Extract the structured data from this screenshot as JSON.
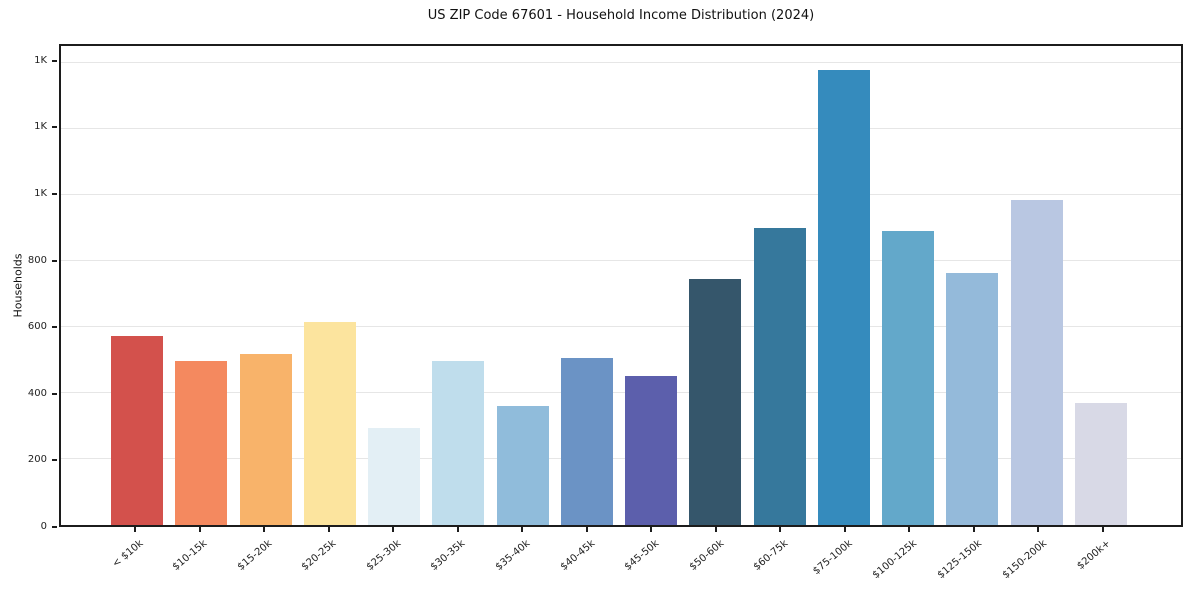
{
  "figure": {
    "title": "US ZIP Code 67601 - Household Income Distribution (2024)",
    "background_color": "#ffffff",
    "spine_color": "#1c1c1c",
    "gridline_color": "#e6e6e6"
  },
  "chart_data": {
    "type": "bar",
    "title": "US ZIP Code 67601 - Household Income Distribution (2024)",
    "xlabel": "",
    "ylabel": "Households",
    "categories": [
      "< $10k",
      "$10-15k",
      "$15-20k",
      "$20-25k",
      "$25-30k",
      "$30-35k",
      "$35-40k",
      "$40-45k",
      "$45-50k",
      "$50-60k",
      "$60-75k",
      "$75-100k",
      "$100-125k",
      "$125-150k",
      "$150-200k",
      "$200k+"
    ],
    "values": [
      571,
      495,
      517,
      614,
      295,
      497,
      360,
      505,
      450,
      745,
      900,
      1376,
      891,
      762,
      984,
      368
    ],
    "bar_colors": [
      "#d3514c",
      "#f4895f",
      "#f8b36a",
      "#fce49e",
      "#e3eff5",
      "#bfddec",
      "#90bcdb",
      "#6b93c5",
      "#5c5fac",
      "#35566b",
      "#36789c",
      "#358bbd",
      "#63a8ca",
      "#94bada",
      "#b9c7e2",
      "#d8d9e6"
    ],
    "ylim": [
      0,
      1450
    ],
    "yticks": [
      {
        "value": 0,
        "label": "0"
      },
      {
        "value": 200,
        "label": "200"
      },
      {
        "value": 400,
        "label": "400"
      },
      {
        "value": 600,
        "label": "600"
      },
      {
        "value": 800,
        "label": "800"
      },
      {
        "value": 1000,
        "label": "1K"
      },
      {
        "value": 1200,
        "label": "1K"
      },
      {
        "value": 1400,
        "label": "1K"
      }
    ],
    "grid": "horizontal",
    "legend": "none"
  }
}
